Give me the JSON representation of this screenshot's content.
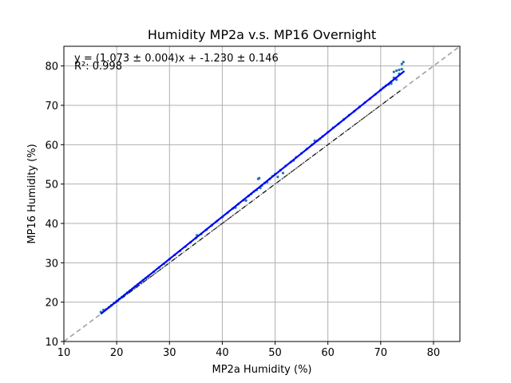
{
  "chart_data": {
    "type": "scatter",
    "title": "Humidity MP2a v.s. MP16 Overnight",
    "xlabel": "MP2a Humidity (%)",
    "ylabel": "MP16 Humidity (%)",
    "xlim": [
      10,
      85
    ],
    "ylim": [
      10,
      85
    ],
    "xticks": [
      "10",
      "20",
      "30",
      "40",
      "50",
      "60",
      "70",
      "80"
    ],
    "yticks": [
      "10",
      "20",
      "30",
      "40",
      "50",
      "60",
      "70",
      "80"
    ],
    "grid": true,
    "annotation": {
      "equation": "y = (1.073 ± 0.004)x + -1.230 ± 0.146",
      "r_squared": "R²: 0.998"
    },
    "fit": {
      "slope": 1.073,
      "intercept": -1.23,
      "x_range": [
        17,
        74.5
      ],
      "color": "#0000ff"
    },
    "identity_line": {
      "color": "#a0a0a0",
      "style": "dashed"
    },
    "reference_line": {
      "x": [
        17,
        74
      ],
      "y": [
        17,
        74
      ],
      "color": "#000000",
      "style": "dash-dot"
    },
    "scatter_color": "#1f77b4",
    "points": [
      [
        17,
        17.5
      ],
      [
        17.5,
        18
      ],
      [
        18,
        18.2
      ],
      [
        18.5,
        18.7
      ],
      [
        19,
        19.2
      ],
      [
        19.5,
        19.8
      ],
      [
        20,
        20.3
      ],
      [
        20.5,
        20.8
      ],
      [
        21,
        21.3
      ],
      [
        21.5,
        21.8
      ],
      [
        22,
        22.4
      ],
      [
        22.5,
        22.9
      ],
      [
        23,
        23.4
      ],
      [
        23.5,
        24.0
      ],
      [
        24,
        24.5
      ],
      [
        24.5,
        25.0
      ],
      [
        25,
        25.6
      ],
      [
        25.5,
        26.1
      ],
      [
        26,
        26.6
      ],
      [
        27,
        27.7
      ],
      [
        28,
        28.8
      ],
      [
        29,
        29.8
      ],
      [
        30,
        30.9
      ],
      [
        31,
        32.0
      ],
      [
        32,
        33.0
      ],
      [
        33,
        34.1
      ],
      [
        34,
        35.2
      ],
      [
        35,
        36.3
      ],
      [
        35.2,
        37.0
      ],
      [
        36,
        37.3
      ],
      [
        37,
        38.4
      ],
      [
        38,
        39.5
      ],
      [
        39,
        40.6
      ],
      [
        40,
        41.6
      ],
      [
        41,
        42.7
      ],
      [
        42,
        43.8
      ],
      [
        42.5,
        44.0
      ],
      [
        43,
        44.9
      ],
      [
        44,
        45.9
      ],
      [
        44.5,
        45.8
      ],
      [
        45,
        47.0
      ],
      [
        45.5,
        47.5
      ],
      [
        46,
        48.1
      ],
      [
        46.5,
        48.5
      ],
      [
        46.8,
        51.3
      ],
      [
        47,
        51.5
      ],
      [
        47.2,
        49.0
      ],
      [
        47.5,
        49.6
      ],
      [
        48,
        50.2
      ],
      [
        48.5,
        50.5
      ],
      [
        49,
        51.3
      ],
      [
        49.5,
        52.0
      ],
      [
        50,
        52.5
      ],
      [
        50.5,
        51.8
      ],
      [
        51,
        53.5
      ],
      [
        51.5,
        52.8
      ],
      [
        52,
        54.6
      ],
      [
        53,
        55.6
      ],
      [
        53.5,
        56.0
      ],
      [
        54,
        56.8
      ],
      [
        55,
        57.8
      ],
      [
        56,
        58.9
      ],
      [
        57,
        60.0
      ],
      [
        57.5,
        61.0
      ],
      [
        58,
        61.0
      ],
      [
        58.5,
        61.5
      ],
      [
        59,
        62.1
      ],
      [
        60,
        63.2
      ],
      [
        61,
        64.3
      ],
      [
        62,
        65.3
      ],
      [
        63,
        66.4
      ],
      [
        64,
        67.5
      ],
      [
        65,
        68.5
      ],
      [
        66,
        69.6
      ],
      [
        67,
        70.7
      ],
      [
        68,
        71.7
      ],
      [
        69,
        72.8
      ],
      [
        70,
        73.9
      ],
      [
        70.5,
        74.5
      ],
      [
        71,
        75.0
      ],
      [
        71.5,
        75.3
      ],
      [
        72,
        76.0
      ],
      [
        72.5,
        77.0
      ],
      [
        72.5,
        78.5
      ],
      [
        73,
        78.8
      ],
      [
        73.5,
        79.0
      ],
      [
        73.5,
        78.0
      ],
      [
        74,
        79.2
      ],
      [
        74,
        80.5
      ],
      [
        74.3,
        81.0
      ],
      [
        73,
        76.5
      ],
      [
        72,
        75.5
      ]
    ]
  }
}
